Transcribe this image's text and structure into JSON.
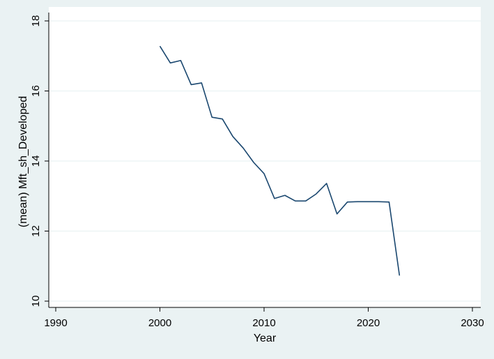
{
  "colors": {
    "page_background": "#eaf2f3",
    "plot_background": "#ffffff",
    "grid": "#eaf2f3",
    "axis": "#000000",
    "series_line": "#1a476f"
  },
  "chart_data": {
    "type": "line",
    "title": "",
    "xlabel": "Year",
    "ylabel": "(mean) Mft_sh_Developed",
    "xlim": [
      1989,
      2031
    ],
    "ylim": [
      9.8,
      18.2
    ],
    "x_ticks": [
      1990,
      2000,
      2010,
      2020,
      2030
    ],
    "y_ticks": [
      10,
      12,
      14,
      16,
      18
    ],
    "grid": true,
    "legend": "none",
    "series": [
      {
        "x": [
          2000,
          2001,
          2002,
          2003,
          2004,
          2005,
          2006,
          2007,
          2008,
          2009,
          2010,
          2011,
          2012,
          2013,
          2014,
          2015,
          2016,
          2017,
          2018,
          2019,
          2020,
          2021,
          2022,
          2023
        ],
        "values": [
          17.28,
          16.8,
          16.87,
          16.18,
          16.23,
          15.25,
          15.2,
          14.7,
          14.37,
          13.96,
          13.64,
          12.93,
          13.02,
          12.86,
          12.86,
          13.06,
          13.36,
          12.49,
          12.83,
          12.84,
          12.84,
          12.84,
          12.83,
          10.73
        ]
      }
    ]
  }
}
